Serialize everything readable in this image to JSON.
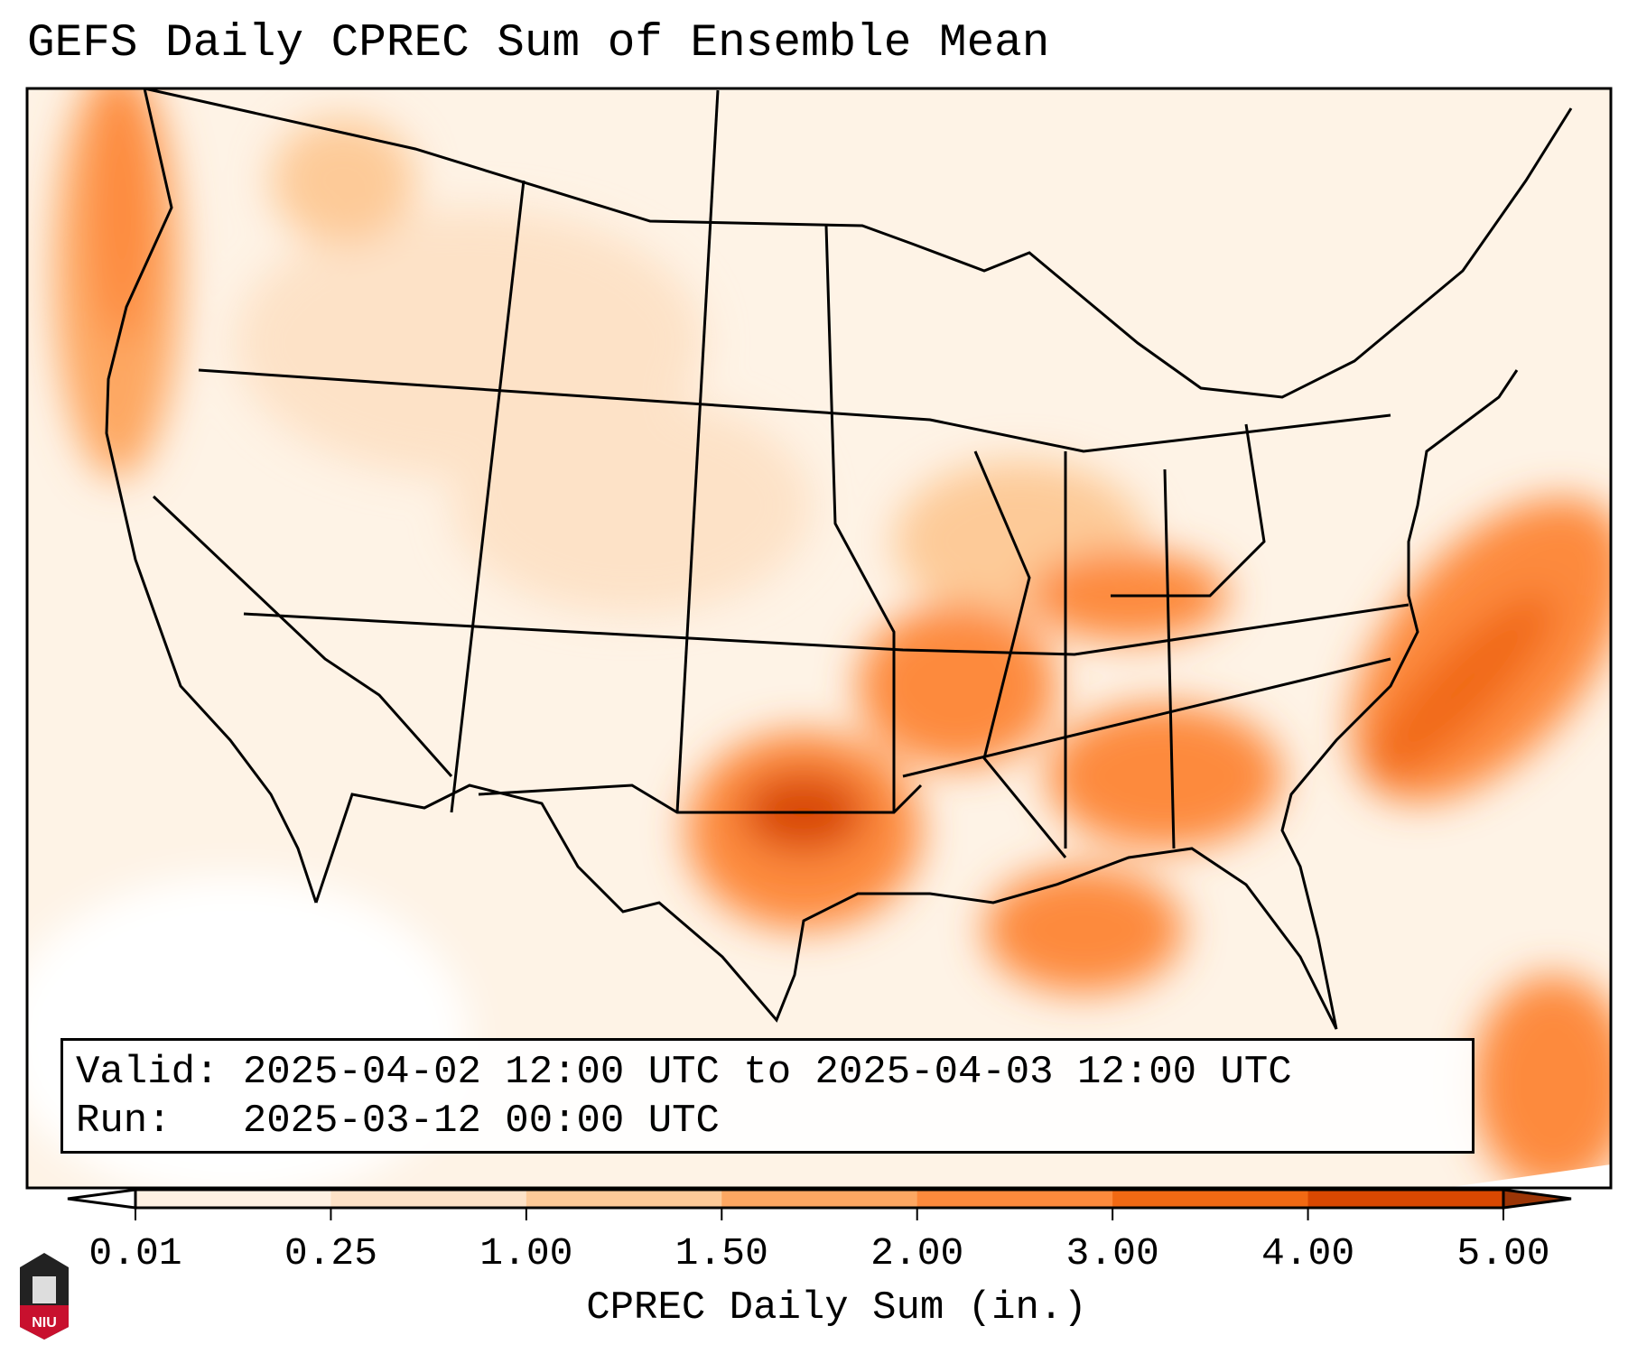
{
  "title": "GEFS Daily CPREC Sum of Ensemble Mean",
  "info": {
    "valid_label": "Valid:",
    "valid_value": "2025-04-02 12:00 UTC to 2025-04-03 12:00 UTC",
    "run_label": "Run:",
    "run_value": "2025-03-12 00:00 UTC"
  },
  "logo_text": "NIU",
  "chart_data": {
    "type": "heatmap",
    "title": "GEFS Daily CPREC Sum of Ensemble Mean",
    "colorbar": {
      "label": "CPREC Daily Sum (in.)",
      "ticks": [
        "0.01",
        "0.25",
        "1.00",
        "1.50",
        "2.00",
        "3.00",
        "4.00",
        "5.00"
      ],
      "levels": [
        0.01,
        0.25,
        1.0,
        1.5,
        2.0,
        3.0,
        4.0,
        5.0
      ],
      "colors": [
        "#fef1e3",
        "#fde2c7",
        "#fdca98",
        "#fda762",
        "#fd8a3c",
        "#f16913",
        "#d94801",
        "#9c3506"
      ],
      "under_color": "#ffffff",
      "extend": "both"
    },
    "regions_highlighted": [
      "Pacific Northwest coast",
      "Texas/Oklahoma",
      "Arkansas-Tennessee-Kentucky",
      "Gulf Coast",
      "Western Atlantic"
    ]
  }
}
